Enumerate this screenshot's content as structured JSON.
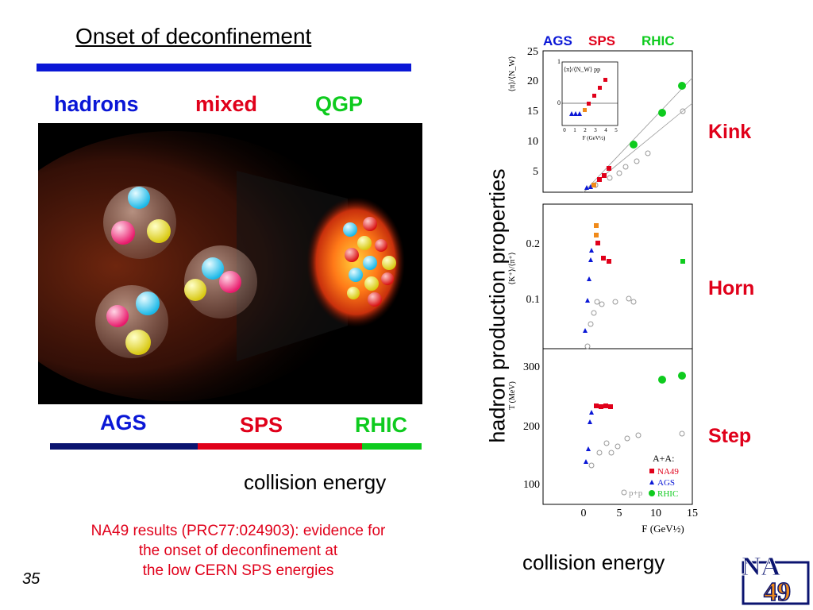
{
  "title": "Onset of deconfinement",
  "phases": {
    "hadrons": "hadrons",
    "mixed": "mixed",
    "qgp": "QGP"
  },
  "energy_labels": {
    "ags": "AGS",
    "sps": "SPS",
    "rhic": "RHIC"
  },
  "collision_energy_left": "collision energy",
  "collision_energy_right": "collision energy",
  "results_text": [
    "NA49 results (PRC77:024903): evidence for",
    "the onset of deconfinement at",
    "the low CERN SPS energies"
  ],
  "slide_number": "35",
  "panel_header": {
    "ags": "AGS",
    "sps": "SPS",
    "rhic": "RHIC"
  },
  "y_axis_label": "hadron production properties",
  "features": {
    "kink": "Kink",
    "horn": "Horn",
    "step": "Step"
  },
  "logo": "NA49",
  "colors": {
    "blue": "#0a17d6",
    "red": "#e0001a",
    "green": "#0ecb1e",
    "navy": "#0b1470",
    "orange": "#f08a1a"
  },
  "plots": {
    "kink": {
      "y_label": "⟨π⟩/⟨N_W⟩",
      "y_ticks": [
        "5",
        "10",
        "15",
        "20",
        "25"
      ],
      "inset": {
        "y_label": "⟨π⟩/⟨N_W⟩ pp",
        "x_ticks": [
          "0",
          "1",
          "2",
          "3",
          "4",
          "5"
        ],
        "y_ticks": [
          "1",
          "0"
        ],
        "x_label": "F (GeV½)"
      }
    },
    "horn": {
      "y_label": "⟨K⁺⟩/⟨π⁺⟩",
      "y_ticks": [
        "0.2",
        "0.1"
      ]
    },
    "step": {
      "y_label": "T (MeV)",
      "y_ticks": [
        "300",
        "200",
        "100"
      ],
      "x_ticks": [
        "0",
        "5",
        "10",
        "15"
      ],
      "x_label": "F (GeV½)",
      "legend_header": "A+A:",
      "legend": [
        {
          "label": "NA49",
          "color": "#e0001a"
        },
        {
          "label": "AGS",
          "color": "#0a17d6"
        },
        {
          "label": "RHIC",
          "color": "#0ecb1e"
        }
      ],
      "legend_pp": "p+p"
    }
  }
}
